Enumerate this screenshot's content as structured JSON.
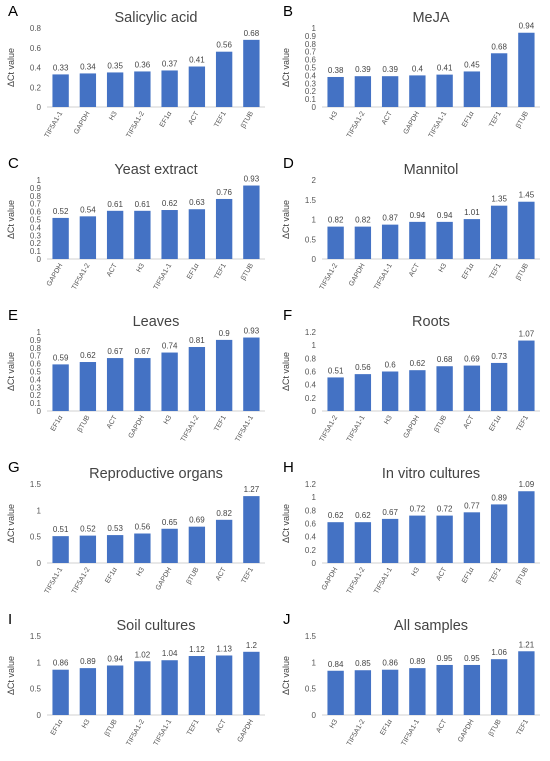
{
  "chart_data": [
    {
      "panel": "A",
      "type": "bar",
      "title": "Salicylic acid",
      "ylabel": "ΔCt value",
      "ylim": [
        0,
        0.8
      ],
      "yticks": [
        0,
        0.2,
        0.4,
        0.6,
        0.8
      ],
      "ytick_labels": [
        "0",
        "0.2",
        "0.4",
        "0.6",
        "0.8"
      ],
      "categories": [
        "TIF5A1-1",
        "GAPDH",
        "H3",
        "TIF5A1-2",
        "EF1α",
        "ACT",
        "TEF1",
        "βTUB"
      ],
      "values": [
        0.33,
        0.34,
        0.35,
        0.36,
        0.37,
        0.41,
        0.56,
        0.68
      ],
      "value_labels": [
        "0.33",
        "0.34",
        "0.35",
        "0.36",
        "0.37",
        "0.41",
        "0.56",
        "0.68"
      ]
    },
    {
      "panel": "B",
      "type": "bar",
      "title": "MeJA",
      "ylabel": "ΔCt value",
      "ylim": [
        0,
        1
      ],
      "yticks": [
        0,
        0.1,
        0.2,
        0.3,
        0.4,
        0.5,
        0.6,
        0.7,
        0.8,
        0.9,
        1
      ],
      "ytick_labels": [
        "0",
        "0.1",
        "0.2",
        "0.3",
        "0.4",
        "0.5",
        "0.6",
        "0.7",
        "0.8",
        "0.9",
        "1"
      ],
      "categories": [
        "H3",
        "TIF5A1-2",
        "ACT",
        "GAPDH",
        "TIF5A1-1",
        "EF1α",
        "TEF1",
        "βTUB"
      ],
      "values": [
        0.38,
        0.39,
        0.39,
        0.4,
        0.41,
        0.45,
        0.68,
        0.94
      ],
      "value_labels": [
        "0.38",
        "0.39",
        "0.39",
        "0.4",
        "0.41",
        "0.45",
        "0.68",
        "0.94"
      ]
    },
    {
      "panel": "C",
      "type": "bar",
      "title": "Yeast extract",
      "ylabel": "ΔCt value",
      "ylim": [
        0,
        1
      ],
      "yticks": [
        0,
        0.1,
        0.2,
        0.3,
        0.4,
        0.5,
        0.6,
        0.7,
        0.8,
        0.9,
        1
      ],
      "ytick_labels": [
        "0",
        "0.1",
        "0.2",
        "0.3",
        "0.4",
        "0.5",
        "0.6",
        "0.7",
        "0.8",
        "0.9",
        "1"
      ],
      "categories": [
        "GAPDH",
        "TIF5A1-2",
        "ACT",
        "H3",
        "TIF5A1-1",
        "EF1α",
        "TEF1",
        "βTUB"
      ],
      "values": [
        0.52,
        0.54,
        0.61,
        0.61,
        0.62,
        0.63,
        0.76,
        0.93
      ],
      "value_labels": [
        "0.52",
        "0.54",
        "0.61",
        "0.61",
        "0.62",
        "0.63",
        "0.76",
        "0.93"
      ]
    },
    {
      "panel": "D",
      "type": "bar",
      "title": "Mannitol",
      "ylabel": "ΔCt value",
      "ylim": [
        0,
        2
      ],
      "yticks": [
        0,
        0.5,
        1,
        1.5,
        2
      ],
      "ytick_labels": [
        "0",
        "0.5",
        "1",
        "1.5",
        "2"
      ],
      "categories": [
        "TIF5A1-2",
        "GAPDH",
        "TIF5A1-1",
        "ACT",
        "H3",
        "EF1α",
        "TEF1",
        "βTUB"
      ],
      "values": [
        0.82,
        0.82,
        0.87,
        0.94,
        0.94,
        1.01,
        1.35,
        1.45
      ],
      "value_labels": [
        "0.82",
        "0.82",
        "0.87",
        "0.94",
        "0.94",
        "1.01",
        "1.35",
        "1.45"
      ]
    },
    {
      "panel": "E",
      "type": "bar",
      "title": "Leaves",
      "ylabel": "ΔCt value",
      "ylim": [
        0,
        1
      ],
      "yticks": [
        0,
        0.1,
        0.2,
        0.3,
        0.4,
        0.5,
        0.6,
        0.7,
        0.8,
        0.9,
        1
      ],
      "ytick_labels": [
        "0",
        "0.1",
        "0.2",
        "0.3",
        "0.4",
        "0.5",
        "0.6",
        "0.7",
        "0.8",
        "0.9",
        "1"
      ],
      "categories": [
        "EF1α",
        "βTUB",
        "ACT",
        "GAPDH",
        "H3",
        "TIF5A1-2",
        "TEF1",
        "TIF5A1-1"
      ],
      "values": [
        0.59,
        0.62,
        0.67,
        0.67,
        0.74,
        0.81,
        0.9,
        0.93
      ],
      "value_labels": [
        "0.59",
        "0.62",
        "0.67",
        "0.67",
        "0.74",
        "0.81",
        "0.9",
        "0.93"
      ]
    },
    {
      "panel": "F",
      "type": "bar",
      "title": "Roots",
      "ylabel": "ΔCt value",
      "ylim": [
        0,
        1.2
      ],
      "yticks": [
        0,
        0.2,
        0.4,
        0.6,
        0.8,
        1,
        1.2
      ],
      "ytick_labels": [
        "0",
        "0.2",
        "0.4",
        "0.6",
        "0.8",
        "1",
        "1.2"
      ],
      "categories": [
        "TIF5A1-2",
        "TIF5A1-1",
        "H3",
        "GAPDH",
        "βTUB",
        "ACT",
        "EF1α",
        "TEF1"
      ],
      "values": [
        0.51,
        0.56,
        0.6,
        0.62,
        0.68,
        0.69,
        0.73,
        1.07
      ],
      "value_labels": [
        "0.51",
        "0.56",
        "0.6",
        "0.62",
        "0.68",
        "0.69",
        "0.73",
        "1.07"
      ]
    },
    {
      "panel": "G",
      "type": "bar",
      "title": "Reproductive organs",
      "ylabel": "ΔCt value",
      "ylim": [
        0,
        1.5
      ],
      "yticks": [
        0,
        0.5,
        1,
        1.5
      ],
      "ytick_labels": [
        "0",
        "0.5",
        "1",
        "1.5"
      ],
      "categories": [
        "TIF5A1-1",
        "TIF5A1-2",
        "EF1α",
        "H3",
        "GAPDH",
        "βTUB",
        "ACT",
        "TEF1"
      ],
      "values": [
        0.51,
        0.52,
        0.53,
        0.56,
        0.65,
        0.69,
        0.82,
        1.27
      ],
      "value_labels": [
        "0.51",
        "0.52",
        "0.53",
        "0.56",
        "0.65",
        "0.69",
        "0.82",
        "1.27"
      ]
    },
    {
      "panel": "H",
      "type": "bar",
      "title": "In vitro cultures",
      "ylabel": "ΔCt value",
      "ylim": [
        0,
        1.2
      ],
      "yticks": [
        0,
        0.2,
        0.4,
        0.6,
        0.8,
        1,
        1.2
      ],
      "ytick_labels": [
        "0",
        "0.2",
        "0.4",
        "0.6",
        "0.8",
        "1",
        "1.2"
      ],
      "categories": [
        "GAPDH",
        "TIF5A1-2",
        "TIF5A1-1",
        "H3",
        "ACT",
        "EF1α",
        "TEF1",
        "βTUB"
      ],
      "values": [
        0.62,
        0.62,
        0.67,
        0.72,
        0.72,
        0.77,
        0.89,
        1.09
      ],
      "value_labels": [
        "0.62",
        "0.62",
        "0.67",
        "0.72",
        "0.72",
        "0.77",
        "0.89",
        "1.09"
      ]
    },
    {
      "panel": "I",
      "type": "bar",
      "title": "Soil cultures",
      "ylabel": "ΔCt value",
      "ylim": [
        0,
        1.5
      ],
      "yticks": [
        0,
        0.5,
        1,
        1.5
      ],
      "ytick_labels": [
        "0",
        "0.5",
        "1",
        "1.5"
      ],
      "categories": [
        "EF1α",
        "H3",
        "βTUB",
        "TIF5A1-2",
        "TIF5A1-1",
        "TEF1",
        "ACT",
        "GAPDH"
      ],
      "values": [
        0.86,
        0.89,
        0.94,
        1.02,
        1.04,
        1.12,
        1.13,
        1.2
      ],
      "value_labels": [
        "0.86",
        "0.89",
        "0.94",
        "1.02",
        "1.04",
        "1.12",
        "1.13",
        "1.2"
      ]
    },
    {
      "panel": "J",
      "type": "bar",
      "title": "All samples",
      "ylabel": "ΔCt value",
      "ylim": [
        0,
        1.5
      ],
      "yticks": [
        0,
        0.5,
        1,
        1.5
      ],
      "ytick_labels": [
        "0",
        "0.5",
        "1",
        "1.5"
      ],
      "categories": [
        "H3",
        "TIF5A1-2",
        "EF1α",
        "TIF5A1-1",
        "ACT",
        "GAPDH",
        "βTUB",
        "TEF1"
      ],
      "values": [
        0.84,
        0.85,
        0.86,
        0.89,
        0.95,
        0.95,
        1.06,
        1.21
      ],
      "value_labels": [
        "0.84",
        "0.85",
        "0.86",
        "0.89",
        "0.95",
        "0.95",
        "1.06",
        "1.21"
      ]
    }
  ],
  "colors": {
    "bar": "#4472c4",
    "axis": "#d0d0d0",
    "text": "#444444"
  }
}
